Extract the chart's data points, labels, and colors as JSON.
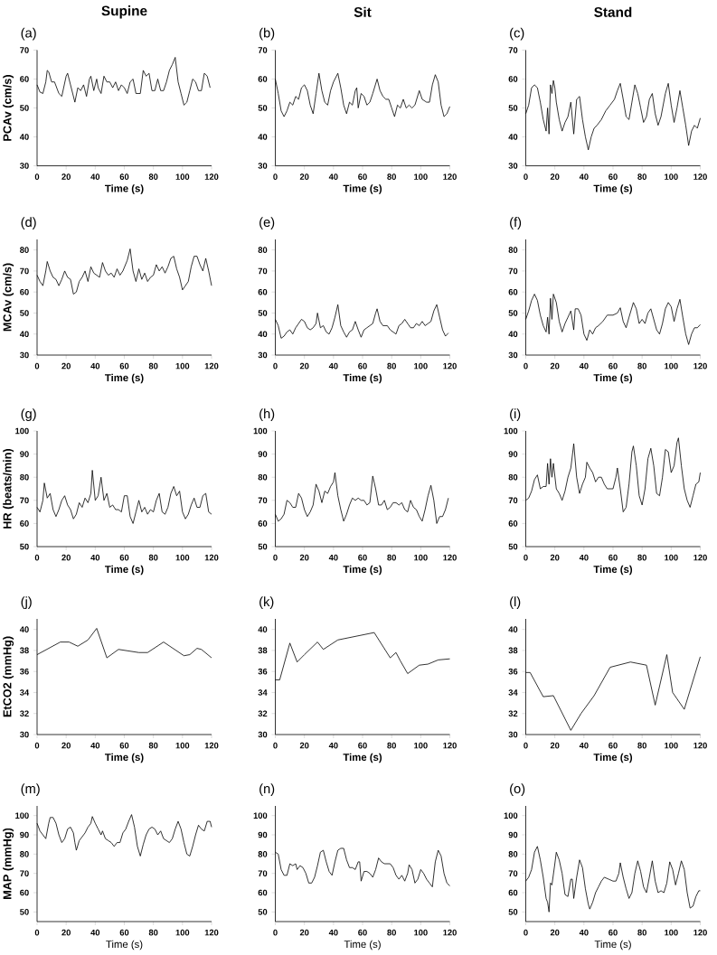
{
  "chart_data": [
    {
      "type": "line",
      "title": "Supine",
      "annotations": [
        "(a)"
      ],
      "xlabel": "Time (s)",
      "ylabel": "PCAv (cm/s)",
      "xlim": [
        0,
        120
      ],
      "xticks": [
        0,
        20,
        40,
        60,
        80,
        100,
        120
      ],
      "ylim": [
        30,
        70
      ],
      "yticks": [
        30,
        40,
        50,
        60,
        70
      ],
      "x": [
        0,
        2,
        4,
        6,
        7,
        8,
        10,
        12,
        15,
        17,
        20,
        21,
        23,
        26,
        28,
        30,
        32,
        34,
        36,
        37,
        39,
        41,
        42,
        44,
        46,
        48,
        50,
        52,
        54,
        56,
        58,
        60,
        62,
        64,
        66,
        68,
        71,
        73,
        75,
        77,
        79,
        81,
        83,
        85,
        87,
        89,
        91,
        93,
        95,
        97,
        99,
        101,
        103,
        105,
        107,
        109,
        111,
        113,
        115,
        117,
        119
      ],
      "series": [
        {
          "color": "#000000",
          "values": [
            58,
            55.5,
            55,
            59,
            63,
            62.5,
            59,
            59,
            55,
            54,
            61,
            62,
            58,
            52,
            57,
            56,
            58,
            54,
            60,
            61,
            56,
            60,
            57,
            55,
            61,
            59,
            59,
            57,
            59,
            56,
            58,
            57,
            55,
            59,
            60,
            55,
            55,
            63,
            61,
            62,
            56,
            56,
            60,
            56,
            56,
            59,
            63,
            65,
            67.5,
            59,
            55,
            51,
            52,
            56,
            60,
            59,
            56,
            56,
            62,
            61,
            57
          ]
        }
      ]
    },
    {
      "type": "line",
      "title": "Sit",
      "annotations": [
        "(b)"
      ],
      "xlabel": "Time (s)",
      "xlim": [
        0,
        120
      ],
      "xticks": [
        0,
        20,
        40,
        60,
        80,
        100,
        120
      ],
      "ylim": [
        30,
        70
      ],
      "yticks": [
        30,
        40,
        50,
        60,
        70
      ],
      "x": [
        0,
        2,
        4,
        6,
        8,
        10,
        12,
        14,
        16,
        18,
        20,
        22,
        24,
        26,
        28,
        30,
        32,
        34,
        36,
        38,
        40,
        43,
        45,
        47,
        49,
        51,
        53,
        55,
        56,
        57,
        59,
        61,
        63,
        65,
        67,
        70,
        72,
        74,
        76,
        78,
        80,
        82,
        84,
        86,
        88,
        90,
        92,
        94,
        96,
        99,
        101,
        104,
        106,
        108,
        110,
        112,
        114,
        116,
        118,
        120
      ],
      "series": [
        {
          "color": "#000000",
          "values": [
            60,
            55,
            49,
            47,
            49,
            52,
            51,
            54,
            53,
            57,
            58,
            56,
            51,
            48,
            55,
            62,
            56,
            52,
            51,
            56,
            59,
            62,
            57,
            51,
            48,
            52,
            51,
            56,
            57,
            50,
            55,
            54,
            51,
            52,
            55,
            60,
            56,
            54,
            53,
            53,
            50,
            47,
            51,
            50,
            53,
            50,
            51,
            50,
            51,
            56,
            53,
            52,
            52,
            58,
            61.5,
            59,
            51,
            47,
            48,
            50.5
          ]
        }
      ]
    },
    {
      "type": "line",
      "title": "Stand",
      "annotations": [
        "(c)"
      ],
      "xlabel": "Time (s)",
      "xlim": [
        0,
        120
      ],
      "xticks": [
        0,
        20,
        40,
        60,
        80,
        100,
        120
      ],
      "ylim": [
        30,
        70
      ],
      "yticks": [
        30,
        40,
        50,
        60,
        70
      ],
      "x": [
        0,
        2,
        4,
        6,
        8,
        10,
        12,
        14,
        15,
        16,
        17,
        18,
        19,
        20,
        21,
        23,
        25,
        27,
        29,
        31,
        33,
        35,
        37,
        39,
        41,
        43,
        45,
        47,
        49,
        52,
        55,
        58,
        61,
        63,
        65,
        67,
        69,
        71,
        73,
        75,
        77,
        79,
        81,
        83,
        85,
        87,
        89,
        91,
        93,
        96,
        98,
        100,
        102,
        104,
        106,
        108,
        110,
        112,
        114,
        116,
        118,
        120
      ],
      "series": [
        {
          "color": "#000000",
          "values": [
            48,
            51,
            57,
            58,
            57,
            52,
            46,
            42,
            50,
            41,
            58,
            55,
            59.5,
            57,
            52,
            46,
            42,
            45,
            47,
            52,
            41,
            53,
            54,
            46,
            40,
            35.5,
            40,
            43,
            44,
            46,
            49,
            51,
            53,
            56,
            58.5,
            53,
            47,
            46,
            52,
            58,
            55,
            50,
            45,
            47,
            53,
            55,
            48,
            44,
            47,
            55,
            58.5,
            51,
            45,
            50,
            56,
            50,
            44,
            37,
            42,
            44,
            43,
            46.5
          ]
        }
      ]
    },
    {
      "type": "line",
      "annotations": [
        "(d)"
      ],
      "xlabel": "Time (s)",
      "ylabel": "MCAv (cm/s)",
      "xlim": [
        0,
        120
      ],
      "xticks": [
        0,
        20,
        40,
        60,
        80,
        100,
        120
      ],
      "ylim": [
        30,
        85
      ],
      "yticks": [
        30,
        40,
        50,
        60,
        70,
        80
      ],
      "x": [
        0,
        2,
        4,
        6,
        7,
        9,
        11,
        13,
        15,
        17,
        19,
        21,
        23,
        25,
        27,
        29,
        31,
        33,
        35,
        37,
        39,
        41,
        43,
        45,
        47,
        49,
        51,
        53,
        55,
        57,
        59,
        62,
        64,
        66,
        68,
        70,
        72,
        74,
        76,
        78,
        80,
        82,
        84,
        86,
        88,
        90,
        92,
        94,
        96,
        98,
        100,
        102,
        104,
        106,
        108,
        110,
        112,
        114,
        116,
        118,
        120
      ],
      "series": [
        {
          "color": "#000000",
          "values": [
            68,
            65,
            63,
            70,
            74.5,
            70,
            67,
            66,
            63,
            66,
            70,
            67,
            66,
            59,
            60,
            65,
            67,
            70,
            65,
            72,
            69,
            68,
            67,
            74,
            70,
            68,
            69,
            67,
            71,
            68,
            70,
            75,
            80.5,
            70,
            65,
            71,
            66,
            69,
            65,
            67,
            68,
            73,
            70,
            72,
            69,
            72,
            76,
            77,
            71,
            67,
            61,
            63,
            65,
            72,
            77,
            77,
            73,
            70,
            76,
            70,
            63
          ]
        }
      ]
    },
    {
      "type": "line",
      "annotations": [
        "(e)"
      ],
      "xlabel": "Time (s)",
      "xlim": [
        0,
        120
      ],
      "xticks": [
        0,
        20,
        40,
        60,
        80,
        100,
        120
      ],
      "ylim": [
        30,
        85
      ],
      "yticks": [
        30,
        40,
        50,
        60,
        70,
        80
      ],
      "x": [
        0,
        2,
        4,
        6,
        8,
        10,
        12,
        14,
        16,
        18,
        20,
        22,
        24,
        26,
        28,
        29,
        31,
        33,
        35,
        37,
        39,
        41,
        43,
        45,
        47,
        49,
        51,
        53,
        55,
        57,
        59,
        61,
        63,
        65,
        67,
        69,
        70,
        72,
        74,
        77,
        79,
        81,
        83,
        85,
        87,
        89,
        91,
        93,
        95,
        97,
        99,
        101,
        103,
        105,
        107,
        109,
        111,
        113,
        115,
        117,
        119
      ],
      "series": [
        {
          "color": "#000000",
          "values": [
            47,
            44,
            38,
            39,
            41,
            42,
            40,
            43,
            45,
            47,
            46,
            43,
            42,
            43,
            45,
            50,
            43,
            44,
            41,
            40,
            43,
            48,
            54,
            44,
            41,
            38.5,
            41,
            42,
            46,
            42,
            38.5,
            42,
            43,
            44,
            45,
            50,
            52,
            46,
            44,
            44,
            42,
            41,
            40,
            44,
            45,
            47,
            45,
            43,
            43,
            45,
            44,
            46,
            44,
            45,
            46,
            51,
            54,
            48,
            42,
            39,
            40.5
          ]
        }
      ]
    },
    {
      "type": "line",
      "annotations": [
        "(f)"
      ],
      "xlabel": "Time (s)",
      "xlim": [
        0,
        120
      ],
      "xticks": [
        0,
        20,
        40,
        60,
        80,
        100,
        120
      ],
      "ylim": [
        30,
        85
      ],
      "yticks": [
        30,
        40,
        50,
        60,
        70,
        80
      ],
      "x": [
        0,
        2,
        4,
        6,
        8,
        10,
        12,
        14,
        15,
        16,
        17,
        18,
        19,
        21,
        23,
        25,
        27,
        29,
        31,
        33,
        34,
        36,
        38,
        40,
        42,
        44,
        46,
        48,
        50,
        53,
        56,
        60,
        63,
        65,
        67,
        69,
        71,
        74,
        76,
        78,
        80,
        82,
        84,
        86,
        88,
        90,
        92,
        94,
        96,
        98,
        100,
        102,
        104,
        106,
        108,
        110,
        112,
        114,
        116,
        118,
        120
      ],
      "series": [
        {
          "color": "#000000",
          "values": [
            47,
            51,
            56,
            59,
            56,
            49,
            44,
            41,
            48,
            40,
            57,
            47,
            59,
            55,
            46,
            41,
            45,
            48,
            51,
            42,
            52,
            52,
            49,
            40,
            37,
            42,
            40,
            43,
            44,
            46,
            49,
            49,
            50,
            52.5,
            46,
            43,
            48,
            55,
            52,
            45,
            47,
            45,
            50,
            52,
            47,
            42,
            40,
            45,
            52,
            55,
            53,
            46,
            52,
            56.5,
            48,
            40,
            35,
            40,
            43,
            43,
            44.5
          ]
        }
      ]
    },
    {
      "type": "line",
      "annotations": [
        "(g)"
      ],
      "xlabel": "Time (s)",
      "ylabel": "HR (beats/min)",
      "xlim": [
        0,
        120
      ],
      "xticks": [
        0,
        20,
        40,
        60,
        80,
        100,
        120
      ],
      "ylim": [
        50,
        100
      ],
      "yticks": [
        50,
        60,
        70,
        80,
        90,
        100
      ],
      "x": [
        0,
        2,
        4,
        5,
        7,
        9,
        11,
        13,
        15,
        17,
        19,
        21,
        23,
        25,
        27,
        29,
        31,
        33,
        35,
        37,
        38,
        40,
        42,
        44,
        46,
        48,
        50,
        52,
        54,
        56,
        58,
        60,
        62,
        64,
        66,
        68,
        70,
        72,
        74,
        76,
        78,
        80,
        82,
        84,
        86,
        88,
        90,
        92,
        94,
        96,
        98,
        100,
        102,
        104,
        106,
        108,
        110,
        112,
        114,
        116,
        118,
        120
      ],
      "series": [
        {
          "color": "#000000",
          "values": [
            67,
            65,
            70,
            77.5,
            71,
            73,
            66,
            63,
            66,
            70,
            72,
            68,
            66,
            62,
            64,
            69,
            67,
            71,
            69,
            73,
            83,
            70,
            72,
            80,
            70,
            73,
            67,
            68,
            66,
            66,
            65,
            72,
            72,
            63,
            60,
            65,
            70,
            65,
            67,
            64,
            66,
            65,
            70,
            73,
            65,
            64,
            67,
            73,
            76,
            72,
            74,
            65,
            62,
            64,
            68,
            71,
            67,
            67,
            72,
            73,
            65,
            64
          ]
        }
      ]
    },
    {
      "type": "line",
      "annotations": [
        "(h)"
      ],
      "xlabel": "Time (s)",
      "xlim": [
        0,
        120
      ],
      "xticks": [
        0,
        20,
        40,
        60,
        80,
        100,
        120
      ],
      "ylim": [
        50,
        100
      ],
      "yticks": [
        50,
        60,
        70,
        80,
        90,
        100
      ],
      "x": [
        0,
        2,
        4,
        6,
        8,
        10,
        12,
        14,
        16,
        18,
        20,
        22,
        24,
        26,
        28,
        30,
        32,
        34,
        36,
        38,
        40,
        41,
        43,
        45,
        47,
        49,
        51,
        53,
        55,
        57,
        59,
        61,
        63,
        65,
        67,
        69,
        71,
        73,
        75,
        77,
        79,
        81,
        83,
        85,
        87,
        89,
        91,
        93,
        95,
        97,
        99,
        101,
        103,
        105,
        107,
        109,
        111,
        113,
        115,
        117,
        119
      ],
      "series": [
        {
          "color": "#000000",
          "values": [
            64,
            61,
            62,
            64,
            70,
            69,
            67,
            67,
            73,
            71,
            66,
            63,
            65,
            68,
            77,
            74,
            69,
            74,
            73,
            76,
            78,
            82,
            72,
            66,
            61,
            64,
            68,
            71,
            70,
            71,
            70,
            70,
            68,
            69,
            80.5,
            75,
            68,
            68,
            70,
            66,
            67,
            69,
            69,
            68,
            69,
            66,
            65,
            70,
            67,
            66,
            63,
            61,
            66,
            72,
            76.5,
            70,
            60,
            63,
            63,
            66,
            71
          ]
        }
      ]
    },
    {
      "type": "line",
      "annotations": [
        "(i)"
      ],
      "xlabel": "Time (s)",
      "xlim": [
        0,
        120
      ],
      "xticks": [
        0,
        20,
        40,
        60,
        80,
        100,
        120
      ],
      "ylim": [
        50,
        100
      ],
      "yticks": [
        50,
        60,
        70,
        80,
        90,
        100
      ],
      "x": [
        0,
        2,
        4,
        6,
        8,
        10,
        12,
        14,
        15,
        16,
        17,
        18,
        19,
        21,
        23,
        25,
        27,
        29,
        31,
        33,
        35,
        37,
        39,
        41,
        42,
        44,
        46,
        48,
        50,
        52,
        54,
        56,
        58,
        60,
        62,
        63,
        65,
        67,
        69,
        71,
        73,
        74,
        76,
        78,
        80,
        82,
        84,
        86,
        88,
        90,
        92,
        94,
        96,
        98,
        100,
        102,
        104,
        105,
        107,
        109,
        111,
        113,
        115,
        117,
        119,
        120
      ],
      "series": [
        {
          "color": "#000000",
          "values": [
            70,
            71,
            74,
            79,
            81,
            75,
            76,
            76,
            86,
            77,
            88,
            80,
            86,
            75,
            73,
            70,
            74,
            80,
            84,
            94.5,
            80,
            73,
            77,
            80,
            86.5,
            84,
            82,
            78,
            80,
            80,
            77,
            75,
            75,
            75,
            80,
            84,
            75,
            65,
            67,
            77,
            91,
            93.5,
            85,
            72,
            68,
            75,
            88,
            92.5,
            85,
            73,
            72,
            80,
            92,
            91,
            82,
            85,
            95,
            97,
            85,
            75,
            70,
            67,
            72,
            77,
            78,
            82
          ]
        }
      ]
    },
    {
      "type": "line",
      "annotations": [
        "(j)"
      ],
      "xlabel": "Time (s)",
      "ylabel": "EtCO2 (mmHg)",
      "xlim": [
        0,
        120
      ],
      "xticks": [
        0,
        20,
        40,
        60,
        80,
        100,
        120
      ],
      "ylim": [
        30,
        41
      ],
      "yticks": [
        30,
        32,
        34,
        36,
        38,
        40
      ],
      "x": [
        0,
        16,
        22,
        28,
        35,
        41,
        48,
        56,
        70,
        76,
        87,
        101,
        105,
        110,
        113,
        120
      ],
      "series": [
        {
          "color": "#000000",
          "values": [
            37.6,
            38.8,
            38.8,
            38.4,
            39,
            40.1,
            37.3,
            38.1,
            37.8,
            37.8,
            38.8,
            37.5,
            37.6,
            38.2,
            38.1,
            37.3
          ]
        }
      ]
    },
    {
      "type": "line",
      "annotations": [
        "(k)"
      ],
      "xlabel": "Time (s)",
      "xlim": [
        0,
        120
      ],
      "xticks": [
        0,
        20,
        40,
        60,
        80,
        100,
        120
      ],
      "ylim": [
        30,
        41
      ],
      "yticks": [
        30,
        32,
        34,
        36,
        38,
        40
      ],
      "x": [
        0,
        3,
        10,
        15,
        20,
        29,
        33,
        43,
        68,
        79,
        83,
        86,
        91,
        99,
        105,
        112,
        120
      ],
      "series": [
        {
          "color": "#000000",
          "values": [
            35.2,
            35.2,
            38.7,
            36.9,
            37.6,
            38.8,
            38.1,
            39,
            39.7,
            37.3,
            37.8,
            37,
            35.8,
            36.6,
            36.7,
            37.1,
            37.2
          ]
        }
      ]
    },
    {
      "type": "line",
      "annotations": [
        "(l)"
      ],
      "xlabel": "Time (s)",
      "xlim": [
        0,
        120
      ],
      "xticks": [
        0,
        20,
        40,
        60,
        80,
        100,
        120
      ],
      "ylim": [
        30,
        41
      ],
      "yticks": [
        30,
        32,
        34,
        36,
        38,
        40
      ],
      "x": [
        0,
        3,
        12,
        19,
        31,
        38,
        47,
        58,
        72,
        83,
        89,
        97,
        101,
        109,
        120
      ],
      "series": [
        {
          "color": "#000000",
          "values": [
            35.9,
            35.9,
            33.6,
            33.7,
            30.4,
            32,
            33.7,
            36.4,
            36.9,
            36.6,
            32.8,
            37.6,
            34,
            32.4,
            37.4
          ]
        }
      ]
    },
    {
      "type": "line",
      "annotations": [
        "(m)"
      ],
      "xlabel": "Time (s)",
      "ylabel": "MAP (mmHg)",
      "xlim": [
        0,
        120
      ],
      "xticks": [
        0,
        20,
        40,
        60,
        80,
        100,
        120
      ],
      "ylim": [
        45,
        105
      ],
      "yticks": [
        50,
        60,
        70,
        80,
        90,
        100
      ],
      "x": [
        0,
        2,
        4,
        6,
        8,
        9,
        11,
        13,
        15,
        17,
        19,
        21,
        23,
        25,
        26,
        27,
        29,
        31,
        33,
        35,
        37,
        38,
        40,
        42,
        44,
        45,
        47,
        49,
        51,
        53,
        55,
        57,
        59,
        61,
        63,
        65,
        67,
        69,
        71,
        73,
        75,
        77,
        79,
        81,
        83,
        85,
        87,
        89,
        91,
        93,
        95,
        97,
        99,
        101,
        103,
        105,
        107,
        109,
        111,
        113,
        115,
        117,
        119,
        120
      ],
      "series": [
        {
          "color": "#000000",
          "values": [
            96,
            92,
            90,
            88,
            96,
            99,
            99,
            96,
            90,
            86,
            88,
            93,
            94,
            91,
            86,
            82,
            87,
            89,
            91,
            94,
            96,
            99.5,
            96,
            93,
            90,
            92,
            88,
            87,
            86,
            84,
            86,
            86,
            91,
            93,
            97,
            100.5,
            94,
            84,
            79,
            85,
            90,
            93,
            94,
            93,
            90,
            92,
            88,
            87,
            86,
            88,
            93,
            97,
            93,
            86,
            80,
            79,
            84,
            90,
            95,
            93,
            92,
            97,
            97,
            94
          ]
        }
      ]
    },
    {
      "type": "line",
      "annotations": [
        "(n)"
      ],
      "xlabel": "Time (s)",
      "xlim": [
        0,
        120
      ],
      "xticks": [
        0,
        20,
        40,
        60,
        80,
        100,
        120
      ],
      "ylim": [
        45,
        105
      ],
      "yticks": [
        50,
        60,
        70,
        80,
        90,
        100
      ],
      "x": [
        0,
        2,
        4,
        6,
        8,
        10,
        12,
        14,
        15,
        17,
        19,
        21,
        23,
        25,
        27,
        29,
        31,
        33,
        35,
        37,
        39,
        41,
        43,
        45,
        47,
        49,
        51,
        53,
        55,
        57,
        58,
        59,
        61,
        63,
        65,
        67,
        69,
        71,
        73,
        75,
        77,
        79,
        81,
        83,
        85,
        87,
        89,
        91,
        92,
        94,
        96,
        98,
        100,
        102,
        104,
        106,
        108,
        110,
        112,
        114,
        116,
        118,
        120
      ],
      "series": [
        {
          "color": "#000000",
          "values": [
            81,
            80,
            72,
            69,
            69,
            75,
            74,
            75,
            72,
            74,
            73,
            70,
            65,
            65,
            68,
            74,
            81,
            82,
            76,
            71,
            69,
            76,
            82,
            83,
            83,
            77,
            73,
            73,
            72,
            76,
            76,
            66,
            71,
            71,
            70,
            68,
            72,
            78,
            76,
            75,
            75,
            75,
            73,
            69,
            67,
            69,
            66,
            70,
            74.5,
            72,
            65,
            67,
            72,
            70,
            67,
            65,
            63,
            76,
            82,
            79,
            70,
            65,
            63.5
          ]
        }
      ]
    },
    {
      "type": "line",
      "annotations": [
        "(o)"
      ],
      "xlabel": "Time (s)",
      "xlim": [
        0,
        120
      ],
      "xticks": [
        0,
        20,
        40,
        60,
        80,
        100,
        120
      ],
      "ylim": [
        45,
        105
      ],
      "yticks": [
        50,
        60,
        70,
        80,
        90,
        100
      ],
      "x": [
        0,
        2,
        4,
        6,
        8,
        10,
        12,
        14,
        15,
        16,
        17,
        18,
        20,
        21,
        23,
        25,
        27,
        29,
        31,
        32,
        33,
        35,
        37,
        39,
        41,
        43,
        44,
        46,
        48,
        50,
        52,
        54,
        57,
        60,
        62,
        64,
        65,
        67,
        69,
        71,
        73,
        75,
        77,
        79,
        81,
        83,
        85,
        87,
        89,
        91,
        93,
        95,
        97,
        99,
        101,
        103,
        105,
        107,
        109,
        111,
        113,
        115,
        117,
        119,
        120
      ],
      "series": [
        {
          "color": "#000000",
          "values": [
            66,
            68,
            72,
            81,
            84,
            77,
            68,
            57,
            55,
            50,
            65,
            64,
            75,
            81,
            77,
            70,
            59,
            58,
            67,
            67,
            57,
            68,
            77,
            73,
            62,
            54,
            51.5,
            55,
            60,
            63,
            66,
            68,
            67,
            66,
            66,
            70,
            75.5,
            68,
            62,
            57,
            60,
            70,
            76.5,
            71,
            63,
            60,
            68,
            76.5,
            66,
            60,
            61,
            60,
            65,
            76,
            72,
            64,
            70,
            76.5,
            72,
            60,
            52,
            53,
            58,
            61,
            61
          ]
        }
      ]
    }
  ]
}
